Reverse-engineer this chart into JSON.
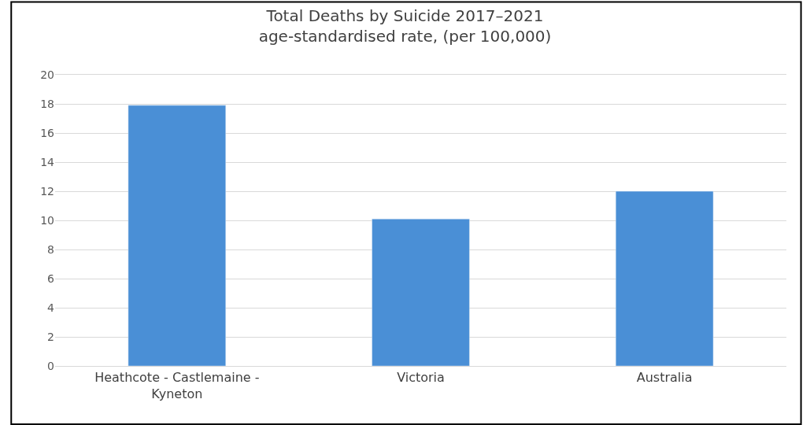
{
  "chart_data": {
    "type": "bar",
    "title": "Total Deaths by Suicide 2017–2021",
    "subtitle": "age-standardised rate, (per 100,000)",
    "categories": [
      "Heathcote - Castlemaine - Kyneton",
      "Victoria",
      "Australia"
    ],
    "values": [
      17.9,
      10.1,
      12.0
    ],
    "color": "#4a8fd6",
    "ylim": [
      0,
      20
    ],
    "yticks": [
      0,
      2,
      4,
      6,
      8,
      10,
      12,
      14,
      16,
      18,
      20
    ],
    "grid": "y"
  }
}
